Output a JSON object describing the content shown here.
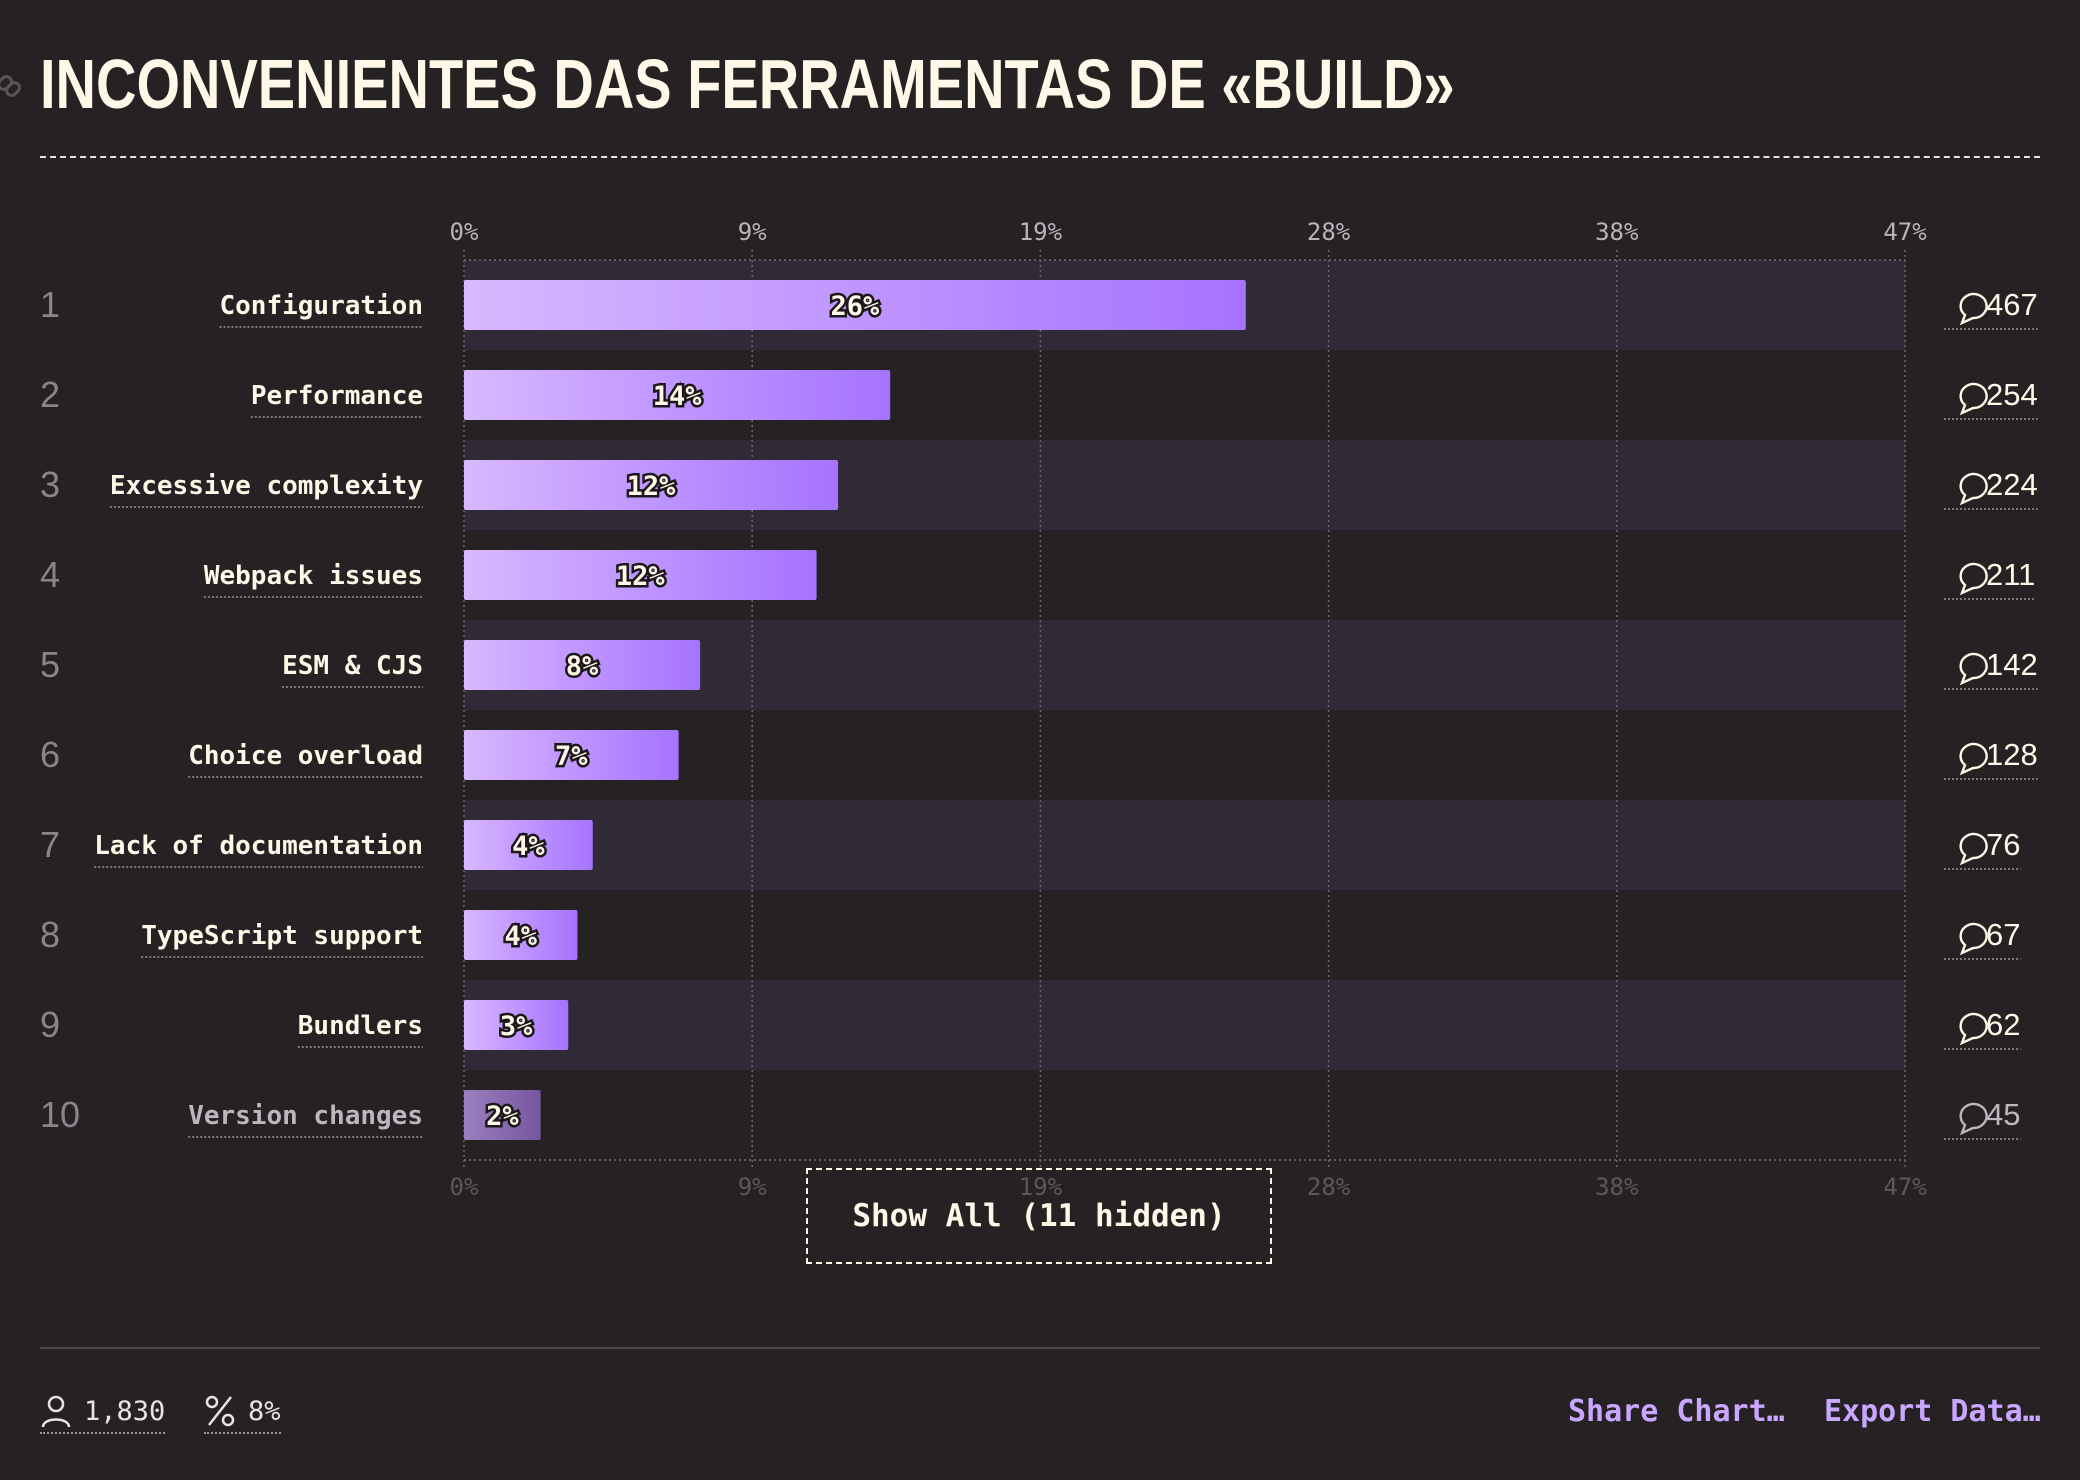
{
  "page": {
    "title": "INCONVENIENTES DAS FERRAMENTAS DE «BUILD»",
    "show_all_label": "Show All (11 hidden)",
    "respondents": "1,830",
    "percent_stat": "8%",
    "share_label": "Share Chart…",
    "export_label": "Export Data…"
  },
  "colors": {
    "background": "#262224",
    "bar_start": "#d8b8ff",
    "bar_end": "#a673ff",
    "row_alt": "#2f2a35",
    "text": "#fff8e9"
  },
  "chart_data": {
    "type": "bar",
    "orientation": "horizontal",
    "xlim": [
      0,
      47
    ],
    "x_ticks": [
      "0%",
      "9%",
      "19%",
      "28%",
      "38%",
      "47%"
    ],
    "x_tick_values": [
      0,
      9.4,
      18.8,
      28.2,
      37.6,
      47
    ],
    "grid": true,
    "categories": [
      "Configuration",
      "Performance",
      "Excessive complexity",
      "Webpack issues",
      "ESM & CJS",
      "Choice overload",
      "Lack of documentation",
      "TypeScript support",
      "Bundlers",
      "Version changes"
    ],
    "ranks": [
      "1",
      "2",
      "3",
      "4",
      "5",
      "6",
      "7",
      "8",
      "9",
      "10"
    ],
    "values": [
      25.5,
      13.9,
      12.2,
      11.5,
      7.7,
      7.0,
      4.2,
      3.7,
      3.4,
      2.5
    ],
    "value_labels": [
      "26%",
      "14%",
      "12%",
      "12%",
      "8%",
      "7%",
      "4%",
      "4%",
      "3%",
      "2%"
    ],
    "counts": [
      "467",
      "254",
      "224",
      "211",
      "142",
      "128",
      "76",
      "67",
      "62",
      "45"
    ]
  }
}
